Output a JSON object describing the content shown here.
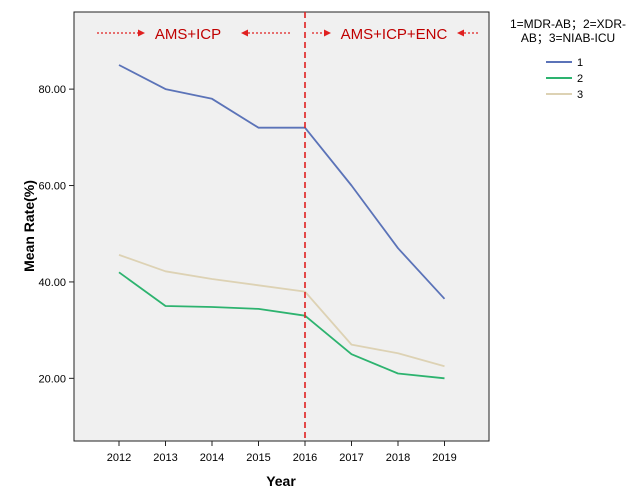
{
  "chart_data": {
    "type": "line",
    "xlabel": "Year",
    "ylabel": "Mean Rate(%)",
    "categories": [
      "2012",
      "2013",
      "2014",
      "2015",
      "2016",
      "2017",
      "2018",
      "2019"
    ],
    "y_ticks": [
      "20.00",
      "40.00",
      "60.00",
      "80.00"
    ],
    "ylim": [
      7,
      96
    ],
    "grid": false,
    "legend": {
      "title_lines": [
        "1=MDR-AB；2=XDR-",
        "AB；3=NIAB-ICU"
      ],
      "position": "top-right-outside"
    },
    "series": [
      {
        "name": "1",
        "color": "#5b73b8",
        "values": [
          85,
          80,
          78,
          72,
          72,
          60,
          47,
          36.5
        ]
      },
      {
        "name": "2",
        "color": "#2db36f",
        "values": [
          42,
          35,
          34.8,
          34.4,
          33,
          25,
          21,
          20
        ]
      },
      {
        "name": "3",
        "color": "#ddd2b4",
        "values": [
          45.6,
          42.2,
          40.6,
          39.3,
          38,
          27,
          25.2,
          22.5
        ]
      }
    ],
    "annotations": {
      "intervention_year": "2016",
      "intervention_line_color": "#e02020",
      "phase_before": "AMS+ICP",
      "phase_after": "AMS+ICP+ENC",
      "arrow_color": "#e02020"
    }
  }
}
